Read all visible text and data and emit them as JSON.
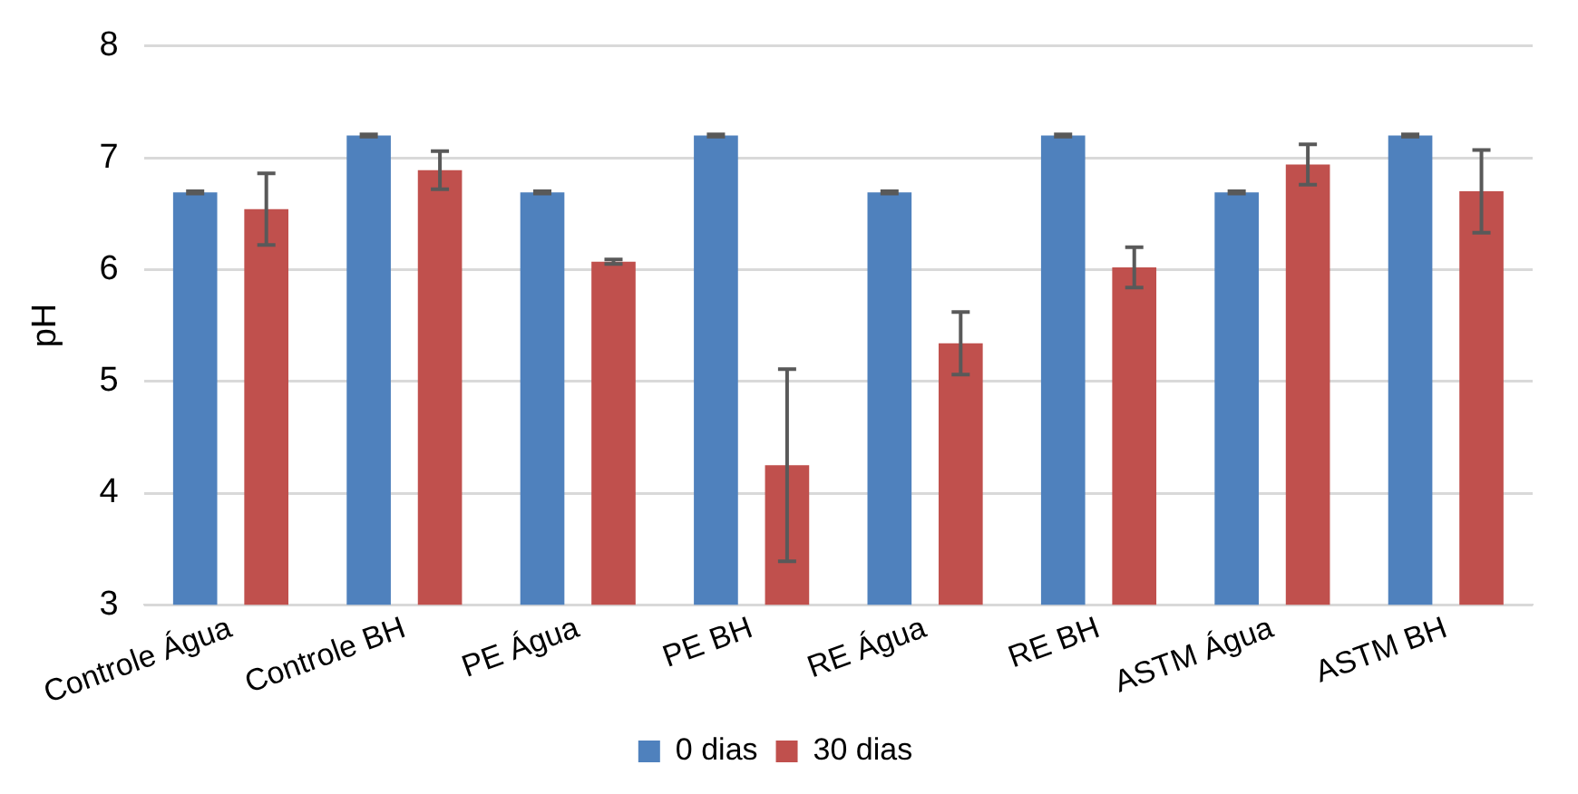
{
  "chart_data": {
    "type": "bar",
    "ylabel": "pH",
    "categories": [
      "Controle Água",
      "Controle BH",
      "PE Água",
      "PE BH",
      "RE Água",
      "RE BH",
      "ASTM Água",
      "ASTM BH"
    ],
    "series": [
      {
        "name": "0 dias",
        "color": "#4f81bd",
        "values": [
          6.69,
          7.2,
          6.69,
          7.2,
          6.69,
          7.2,
          6.69,
          7.2
        ],
        "errors": [
          0.01,
          0.01,
          0.01,
          0.01,
          0.01,
          0.01,
          0.01,
          0.01
        ]
      },
      {
        "name": "30 dias",
        "color": "#c0504d",
        "values": [
          6.54,
          6.89,
          6.07,
          4.25,
          5.34,
          6.02,
          6.94,
          6.7
        ],
        "errors": [
          0.32,
          0.17,
          0.02,
          0.86,
          0.28,
          0.18,
          0.18,
          0.37
        ]
      }
    ],
    "ylim": [
      3,
      8
    ],
    "yticks": [
      3,
      4,
      5,
      6,
      7,
      8
    ],
    "grid": "y",
    "legend": "bottom"
  }
}
